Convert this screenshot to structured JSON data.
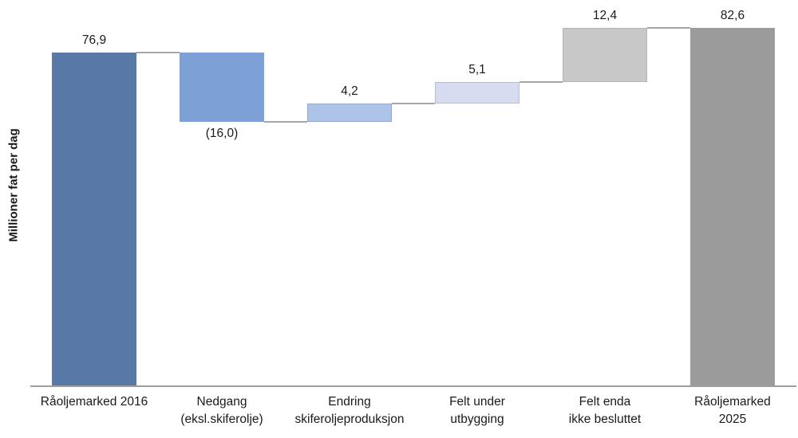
{
  "chart_data": {
    "type": "bar",
    "subtype": "waterfall",
    "title": "",
    "ylabel": "Millioner fat per dag",
    "xlabel": "",
    "ylim": [
      0,
      89
    ],
    "grid": false,
    "legend": "none",
    "axis_line_color": "#9e9e9e",
    "connector_color": "#a6a6a6",
    "text_color": "#1a1a1a",
    "steps": [
      {
        "id": "raoljemarked-2016",
        "category_lines": [
          "Råoljemarked 2016"
        ],
        "value": 76.9,
        "value_label": "76,9",
        "kind": "total",
        "label_position": "above",
        "color": "#5878a7",
        "border": ""
      },
      {
        "id": "nedgang-eksl-skiferolje",
        "category_lines": [
          "Nedgang",
          "(eksl.skiferolje)"
        ],
        "value": -16.0,
        "value_label": "(16,0)",
        "kind": "delta",
        "label_position": "below",
        "color": "#7da0d6",
        "border": ""
      },
      {
        "id": "endring-skiferoljeproduksjon",
        "category_lines": [
          "Endring",
          "skiferoljeproduksjon"
        ],
        "value": 4.2,
        "value_label": "4,2",
        "kind": "delta",
        "label_position": "above",
        "color": "#adc4e8",
        "border": "#94a8cf"
      },
      {
        "id": "felt-under-utbygging",
        "category_lines": [
          "Felt under",
          "utbygging"
        ],
        "value": 5.1,
        "value_label": "5,1",
        "kind": "delta",
        "label_position": "above",
        "color": "#d8dcf0",
        "border": "#b7bdd9"
      },
      {
        "id": "felt-enda-ikke-besluttet",
        "category_lines": [
          "Felt enda",
          "ikke besluttet"
        ],
        "value": 12.4,
        "value_label": "12,4",
        "kind": "delta",
        "label_position": "above",
        "color": "#c8c8c8",
        "border": "#b5b5b5"
      },
      {
        "id": "raoljemarked-2025",
        "category_lines": [
          "Råoljemarked",
          "2025"
        ],
        "value": 82.6,
        "value_label": "82,6",
        "kind": "total",
        "label_position": "above",
        "color": "#9b9b9b",
        "border": ""
      }
    ]
  }
}
